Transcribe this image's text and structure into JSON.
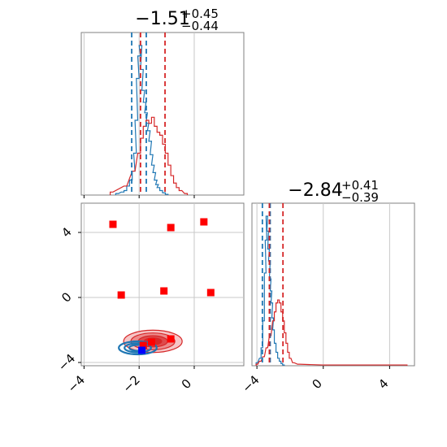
{
  "chart_data": [
    {
      "type": "histogram",
      "panel": "top-left marginal",
      "title": {
        "main": "−1.51",
        "sup": "+0.45",
        "sub": "−0.44"
      },
      "xlim": [
        -4.1,
        1.8
      ],
      "grid": true,
      "series": [
        {
          "name": "",
          "color": "#1f77b4",
          "x": [
            -2.8,
            -2.6,
            -2.5,
            -2.4,
            -2.3,
            -2.2,
            -2.15,
            -2.1,
            -2.05,
            -2.0,
            -1.95,
            -1.9,
            -1.85,
            -1.8,
            -1.75,
            -1.7,
            -1.65,
            -1.6,
            -1.55,
            -1.5,
            -1.45,
            -1.4,
            -1.35,
            -1.3,
            -1.2,
            -1.1,
            -1.0
          ],
          "y": [
            0.01,
            0.02,
            0.03,
            0.06,
            0.1,
            0.16,
            0.28,
            0.5,
            0.78,
            0.93,
            1.0,
            0.84,
            0.7,
            0.62,
            0.55,
            0.48,
            0.43,
            0.36,
            0.27,
            0.2,
            0.15,
            0.1,
            0.07,
            0.05,
            0.03,
            0.015,
            0.005
          ],
          "quantile_lines_x": [
            -2.27,
            -1.74
          ]
        },
        {
          "name": "",
          "color": "#d62728",
          "x": [
            -3.0,
            -2.5,
            -2.2,
            -2.0,
            -1.9,
            -1.8,
            -1.7,
            -1.6,
            -1.5,
            -1.4,
            -1.3,
            -1.2,
            -1.1,
            -1.0,
            -0.9,
            -0.8,
            -0.7,
            -0.6,
            -0.5,
            -0.3
          ],
          "y": [
            0.02,
            0.06,
            0.16,
            0.28,
            0.38,
            0.46,
            0.5,
            0.48,
            0.52,
            0.46,
            0.42,
            0.4,
            0.34,
            0.28,
            0.2,
            0.13,
            0.08,
            0.05,
            0.03,
            0.01
          ],
          "quantile_lines_x": [
            -1.95,
            -1.06
          ]
        }
      ]
    },
    {
      "type": "scatter",
      "panel": "bottom-left 2D",
      "xlim": [
        -4.1,
        1.8
      ],
      "ylim": [
        -4.2,
        5.8
      ],
      "xticks": [
        "−4",
        "−2",
        "0"
      ],
      "yticks": [
        "−4",
        "0",
        "4"
      ],
      "xtick_values": [
        -4,
        -2,
        0
      ],
      "ytick_values": [
        -4,
        0,
        4
      ],
      "grid": true,
      "red_markers": [
        [
          -2.95,
          4.5
        ],
        [
          -0.85,
          4.3
        ],
        [
          0.35,
          4.65
        ],
        [
          -2.65,
          0.15
        ],
        [
          -1.1,
          0.4
        ],
        [
          0.6,
          0.3
        ],
        [
          -1.85,
          -2.95
        ],
        [
          -1.55,
          -2.75
        ],
        [
          -0.85,
          -2.55
        ]
      ],
      "blue_markers": [
        [
          -1.9,
          -3.25
        ]
      ],
      "red_density": {
        "center": [
          -1.5,
          -2.7
        ],
        "sigma": [
          0.85,
          0.55
        ],
        "levels": [
          1.0,
          0.75,
          0.5,
          0.3
        ]
      },
      "blue_density": {
        "center": [
          -2.05,
          -3.1
        ],
        "sigma": [
          0.55,
          0.32
        ],
        "levels": [
          1.0,
          0.7,
          0.45
        ]
      },
      "red_points_color": "#d62728",
      "blue_points_color": "#1f77b4",
      "marker_blue": "#0000ff",
      "marker_red": "#ff0000"
    },
    {
      "type": "histogram",
      "panel": "bottom-right marginal",
      "title": {
        "main": "−2.84",
        "sup": "+0.41",
        "sub": "−0.39"
      },
      "xlim": [
        -4.3,
        5.5
      ],
      "xticks": [
        "−4",
        "0",
        "4"
      ],
      "xtick_values": [
        -4,
        0,
        4
      ],
      "grid": true,
      "series": [
        {
          "name": "",
          "color": "#1f77b4",
          "x": [
            -4.0,
            -3.8,
            -3.7,
            -3.6,
            -3.5,
            -3.45,
            -3.4,
            -3.35,
            -3.3,
            -3.25,
            -3.2,
            -3.15,
            -3.1,
            -3.05,
            -3.0,
            -2.9,
            -2.8,
            -2.7,
            -2.6,
            -2.5,
            -2.4
          ],
          "y": [
            0.02,
            0.05,
            0.12,
            0.3,
            0.62,
            0.84,
            1.0,
            0.9,
            0.78,
            0.7,
            0.58,
            0.5,
            0.42,
            0.32,
            0.24,
            0.15,
            0.09,
            0.05,
            0.03,
            0.015,
            0.005
          ],
          "quantile_lines_x": [
            -3.67,
            -3.2
          ]
        },
        {
          "name": "",
          "color": "#d62728",
          "x": [
            -4.0,
            -3.8,
            -3.6,
            -3.4,
            -3.2,
            -3.0,
            -2.9,
            -2.8,
            -2.7,
            -2.6,
            -2.5,
            -2.4,
            -2.3,
            -2.2,
            -2.1,
            -2.0,
            -1.8,
            -1.5,
            0.0,
            4.0,
            5.0
          ],
          "y": [
            0.01,
            0.03,
            0.06,
            0.12,
            0.2,
            0.3,
            0.36,
            0.42,
            0.44,
            0.42,
            0.36,
            0.3,
            0.22,
            0.15,
            0.09,
            0.05,
            0.02,
            0.01,
            0.005,
            0.005,
            0.005
          ],
          "quantile_lines_x": [
            -3.25,
            -2.43
          ]
        }
      ]
    }
  ]
}
